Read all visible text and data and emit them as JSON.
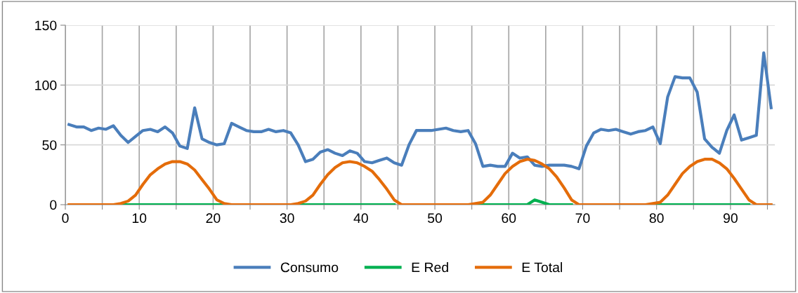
{
  "chart_data": {
    "type": "line",
    "x": [
      0.5,
      1.5,
      2.5,
      3.5,
      4.5,
      5.5,
      6.5,
      7.5,
      8.5,
      9.5,
      10.5,
      11.5,
      12.5,
      13.5,
      14.5,
      15.5,
      16.5,
      17.5,
      18.5,
      19.5,
      20.5,
      21.5,
      22.5,
      23.5,
      24.5,
      25.5,
      26.5,
      27.5,
      28.5,
      29.5,
      30.5,
      31.5,
      32.5,
      33.5,
      34.5,
      35.5,
      36.5,
      37.5,
      38.5,
      39.5,
      40.5,
      41.5,
      42.5,
      43.5,
      44.5,
      45.5,
      46.5,
      47.5,
      48.5,
      49.5,
      50.5,
      51.5,
      52.5,
      53.5,
      54.5,
      55.5,
      56.5,
      57.5,
      58.5,
      59.5,
      60.5,
      61.5,
      62.5,
      63.5,
      64.5,
      65.5,
      66.5,
      67.5,
      68.5,
      69.5,
      70.5,
      71.5,
      72.5,
      73.5,
      74.5,
      75.5,
      76.5,
      77.5,
      78.5,
      79.5,
      80.5,
      81.5,
      82.5,
      83.5,
      84.5,
      85.5,
      86.5,
      87.5,
      88.5,
      89.5,
      90.5,
      91.5,
      92.5,
      93.5,
      94.5,
      95.5
    ],
    "series": [
      {
        "name": "Consumo",
        "color": "#4a7ebb",
        "values": [
          67,
          65,
          65,
          62,
          64,
          63,
          66,
          58,
          52,
          57,
          62,
          63,
          61,
          65,
          60,
          49,
          47,
          81,
          55,
          52,
          50,
          51,
          68,
          65,
          62,
          61,
          61,
          63,
          61,
          62,
          60,
          50,
          36,
          38,
          44,
          46,
          43,
          41,
          45,
          43,
          36,
          35,
          37,
          39,
          35,
          33,
          50,
          62,
          62,
          62,
          63,
          64,
          62,
          61,
          62,
          51,
          32,
          33,
          32,
          32,
          43,
          39,
          40,
          33,
          32,
          33,
          33,
          33,
          32,
          30,
          49,
          60,
          63,
          62,
          63,
          61,
          59,
          61,
          62,
          65,
          51,
          90,
          107,
          106,
          106,
          94,
          55,
          48,
          43,
          62,
          75,
          54,
          56,
          58,
          127,
          81
        ]
      },
      {
        "name": "E Red",
        "color": "#00b050",
        "values": [
          null,
          null,
          null,
          null,
          null,
          null,
          null,
          0,
          0,
          0,
          0,
          0,
          0,
          0,
          0,
          0,
          0,
          0,
          0,
          0,
          0,
          0,
          null,
          null,
          null,
          null,
          null,
          null,
          null,
          null,
          null,
          0,
          0,
          0,
          0,
          0,
          0,
          0,
          0,
          0,
          0,
          0,
          0,
          0,
          0,
          null,
          null,
          null,
          null,
          null,
          null,
          null,
          null,
          null,
          null,
          0,
          0,
          0,
          0,
          0,
          0,
          0,
          0,
          4,
          2,
          0,
          0,
          0,
          0,
          null,
          null,
          null,
          null,
          null,
          null,
          null,
          null,
          null,
          null,
          0,
          0,
          0,
          0,
          0,
          0,
          0,
          0,
          0,
          0,
          0,
          0,
          0,
          0,
          null,
          null,
          null
        ]
      },
      {
        "name": "E Total",
        "color": "#e46c0a",
        "values": [
          0,
          0,
          0,
          0,
          0,
          0,
          0,
          1,
          3,
          8,
          17,
          25,
          30,
          34,
          36,
          36,
          34,
          29,
          21,
          13,
          4,
          1,
          0,
          0,
          0,
          0,
          0,
          0,
          0,
          0,
          0,
          1,
          3,
          8,
          17,
          25,
          31,
          35,
          36,
          35,
          32,
          28,
          21,
          13,
          4,
          0,
          0,
          0,
          0,
          0,
          0,
          0,
          0,
          0,
          0,
          1,
          2,
          8,
          17,
          26,
          32,
          36,
          38,
          37,
          34,
          30,
          23,
          14,
          4,
          0,
          0,
          0,
          0,
          0,
          0,
          0,
          0,
          0,
          0,
          1,
          2,
          8,
          17,
          26,
          32,
          36,
          38,
          38,
          35,
          30,
          22,
          13,
          4,
          0,
          0,
          0
        ]
      }
    ],
    "xlim": [
      0,
      96
    ],
    "xticks": [
      0,
      {
        "value": 5,
        "label": null
      },
      10,
      {
        "value": 15,
        "label": null
      },
      20,
      {
        "value": 25,
        "label": null
      },
      30,
      {
        "value": 35,
        "label": null
      },
      40,
      {
        "value": 45,
        "label": null
      },
      50,
      {
        "value": 55,
        "label": null
      },
      60,
      {
        "value": 65,
        "label": null
      },
      70,
      {
        "value": 75,
        "label": null
      },
      80,
      {
        "value": 85,
        "label": null
      },
      90,
      {
        "value": 95,
        "label": null
      }
    ],
    "ylim": [
      0,
      150
    ],
    "yticks": [
      0,
      50,
      100,
      150
    ],
    "grid": true,
    "legend": "bottom",
    "marker": "none",
    "line_style": "solid"
  }
}
